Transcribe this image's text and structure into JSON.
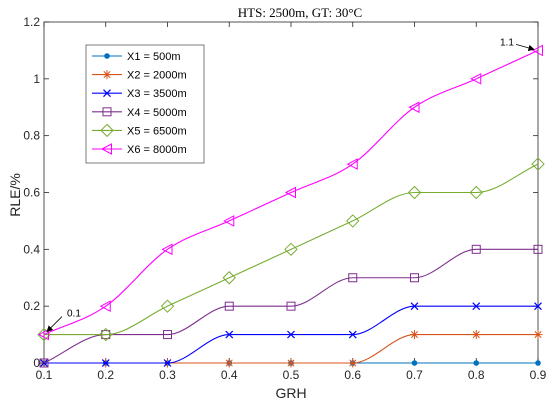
{
  "chart_data": {
    "type": "line",
    "title": "HTS: 2500m, GT: 30°C",
    "xlabel": "GRH",
    "ylabel": "RLE/%",
    "x": [
      0.1,
      0.2,
      0.3,
      0.4,
      0.5,
      0.6,
      0.7,
      0.8,
      0.9
    ],
    "x_tick_labels": [
      "0.1",
      "0.2",
      "0.3",
      "0.4",
      "0.5",
      "0.6",
      "0.7",
      "0.8",
      "0.9"
    ],
    "y_tick_labels": [
      "0",
      "0.2",
      "0.4",
      "0.6",
      "0.8",
      "1",
      "1.2"
    ],
    "xlim": [
      0.1,
      0.9
    ],
    "ylim": [
      0,
      1.2
    ],
    "y_ticks": [
      0,
      0.2,
      0.4,
      0.6,
      0.8,
      1.0,
      1.2
    ],
    "grid": false,
    "legend_position": "top-left",
    "series": [
      {
        "name": "X1 = 500m",
        "color": "#0072BD",
        "marker": "dot",
        "values": [
          0,
          0,
          0,
          0,
          0,
          0,
          0,
          0,
          0
        ]
      },
      {
        "name": "X2 = 2000m",
        "color": "#D95319",
        "marker": "asterisk",
        "values": [
          0,
          0,
          0,
          0,
          0,
          0,
          0.1,
          0.1,
          0.1
        ]
      },
      {
        "name": "X3 = 3500m",
        "color": "#0000FF",
        "marker": "x",
        "values": [
          0,
          0,
          0,
          0.1,
          0.1,
          0.1,
          0.2,
          0.2,
          0.2
        ]
      },
      {
        "name": "X4 = 5000m",
        "color": "#7E2F8E",
        "marker": "square",
        "values": [
          0,
          0.1,
          0.1,
          0.2,
          0.2,
          0.3,
          0.3,
          0.4,
          0.4
        ]
      },
      {
        "name": "X5 = 6500m",
        "color": "#77AC30",
        "marker": "diamond",
        "values": [
          0.1,
          0.1,
          0.2,
          0.3,
          0.4,
          0.5,
          0.6,
          0.6,
          0.7
        ]
      },
      {
        "name": "X6 = 8000m",
        "color": "#FF00FF",
        "marker": "triangle-left",
        "values": [
          0.1,
          0.2,
          0.4,
          0.5,
          0.6,
          0.7,
          0.9,
          1.0,
          1.1
        ]
      }
    ],
    "annotations": [
      {
        "text": "0.1",
        "x": 0.1,
        "y": 0.1
      },
      {
        "text": "1.1",
        "x": 0.9,
        "y": 1.1
      }
    ]
  }
}
